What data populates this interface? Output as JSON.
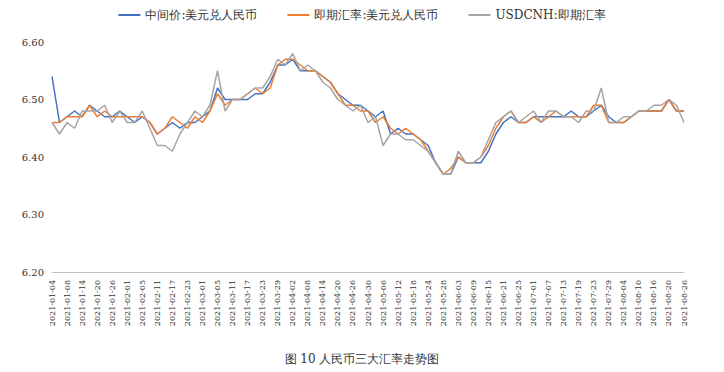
{
  "chart_data": {
    "type": "line",
    "title": "图 10 人民币三大汇率走势图",
    "categories": [
      "2021-01-04",
      null,
      "2021-01-08",
      null,
      "2021-01-14",
      null,
      "2021-01-20",
      null,
      "2021-01-26",
      null,
      "2021-02-01",
      null,
      "2021-02-05",
      null,
      "2021-02-11",
      null,
      "2021-02-17",
      null,
      "2021-02-23",
      null,
      "2021-03-01",
      null,
      "2021-03-05",
      null,
      "2021-03-11",
      null,
      "2021-03-17",
      null,
      "2021-03-23",
      null,
      "2021-03-29",
      null,
      "2021-04-02",
      null,
      "2021-04-08",
      null,
      "2021-04-14",
      null,
      "2021-04-20",
      null,
      "2021-04-26",
      null,
      "2021-04-30",
      null,
      "2021-05-06",
      null,
      "2021-05-12",
      null,
      "2021-05-18",
      null,
      "2021-05-24",
      null,
      "2021-05-28",
      null,
      "2021-06-03",
      null,
      "2021-06-09",
      null,
      "2021-06-15",
      null,
      "2021-06-21",
      null,
      "2021-06-25",
      null,
      "2021-07-01",
      null,
      "2021-07-07",
      null,
      "2021-07-13",
      null,
      "2021-07-19",
      null,
      "2021-07-23",
      null,
      "2021-07-29",
      null,
      "2021-08-04",
      null,
      "2021-08-10",
      null,
      "2021-08-16",
      null,
      "2021-08-20",
      null,
      "2021-08-26"
    ],
    "series": [
      {
        "name": "中间价:美元兑人民币",
        "color": "#4472C4",
        "values": [
          6.54,
          6.46,
          6.47,
          6.48,
          6.47,
          6.49,
          6.48,
          6.47,
          6.47,
          6.48,
          6.47,
          6.46,
          6.47,
          6.46,
          6.44,
          6.45,
          6.46,
          6.45,
          6.46,
          6.46,
          6.47,
          6.48,
          6.52,
          6.5,
          6.5,
          6.5,
          6.5,
          6.51,
          6.51,
          6.53,
          6.56,
          6.56,
          6.57,
          6.55,
          6.55,
          6.55,
          6.54,
          6.53,
          6.51,
          6.5,
          6.49,
          6.49,
          6.48,
          6.47,
          6.48,
          6.44,
          6.45,
          6.44,
          6.44,
          6.43,
          6.42,
          6.39,
          6.37,
          6.37,
          6.4,
          6.39,
          6.39,
          6.39,
          6.41,
          6.44,
          6.46,
          6.47,
          6.46,
          6.46,
          6.47,
          6.47,
          6.47,
          6.47,
          6.47,
          6.48,
          6.47,
          6.47,
          6.48,
          6.49,
          6.47,
          6.46,
          6.46,
          6.47,
          6.48,
          6.48,
          6.48,
          6.48,
          6.5,
          6.48,
          6.48
        ]
      },
      {
        "name": "即期汇率:美元兑人民币",
        "color": "#ED7D31",
        "values": [
          6.46,
          6.46,
          6.47,
          6.47,
          6.47,
          6.49,
          6.47,
          6.48,
          6.47,
          6.47,
          6.47,
          6.47,
          6.47,
          6.46,
          6.44,
          6.45,
          6.47,
          6.46,
          6.45,
          6.47,
          6.46,
          6.48,
          6.51,
          6.49,
          6.5,
          6.5,
          6.51,
          6.52,
          6.51,
          6.52,
          6.56,
          6.57,
          6.57,
          6.56,
          6.55,
          6.55,
          6.54,
          6.53,
          6.51,
          6.49,
          6.49,
          6.48,
          6.48,
          6.46,
          6.47,
          6.45,
          6.44,
          6.45,
          6.44,
          6.43,
          6.41,
          6.39,
          6.37,
          6.38,
          6.4,
          6.39,
          6.39,
          6.4,
          6.42,
          6.45,
          6.47,
          6.48,
          6.46,
          6.46,
          6.47,
          6.46,
          6.47,
          6.48,
          6.47,
          6.47,
          6.47,
          6.47,
          6.49,
          6.49,
          6.46,
          6.46,
          6.46,
          6.47,
          6.48,
          6.48,
          6.48,
          6.48,
          6.5,
          6.48,
          6.48
        ]
      },
      {
        "name": "USDCNH:即期汇率",
        "color": "#A5A5A5",
        "values": [
          6.46,
          6.44,
          6.46,
          6.45,
          6.48,
          6.48,
          6.48,
          6.49,
          6.46,
          6.48,
          6.46,
          6.46,
          6.48,
          6.45,
          6.42,
          6.42,
          6.41,
          6.44,
          6.46,
          6.48,
          6.47,
          6.49,
          6.55,
          6.48,
          6.5,
          6.5,
          6.51,
          6.52,
          6.52,
          6.54,
          6.57,
          6.56,
          6.58,
          6.55,
          6.56,
          6.55,
          6.53,
          6.52,
          6.5,
          6.49,
          6.48,
          6.49,
          6.46,
          6.47,
          6.42,
          6.44,
          6.44,
          6.43,
          6.43,
          6.42,
          6.41,
          6.39,
          6.37,
          6.37,
          6.41,
          6.39,
          6.39,
          6.4,
          6.43,
          6.46,
          6.47,
          6.48,
          6.46,
          6.47,
          6.48,
          6.46,
          6.48,
          6.48,
          6.47,
          6.47,
          6.46,
          6.48,
          6.48,
          6.52,
          6.46,
          6.46,
          6.47,
          6.47,
          6.48,
          6.48,
          6.49,
          6.49,
          6.5,
          6.49,
          6.46
        ]
      }
    ],
    "ylim": [
      6.2,
      6.6
    ],
    "yticks": [
      {
        "value": 6.2,
        "label": "6.20"
      },
      {
        "value": 6.3,
        "label": "6.30"
      },
      {
        "value": 6.4,
        "label": "6.40"
      },
      {
        "value": 6.5,
        "label": "6.50"
      },
      {
        "value": 6.6,
        "label": "6.60"
      }
    ],
    "grid": false,
    "legend": "top"
  }
}
